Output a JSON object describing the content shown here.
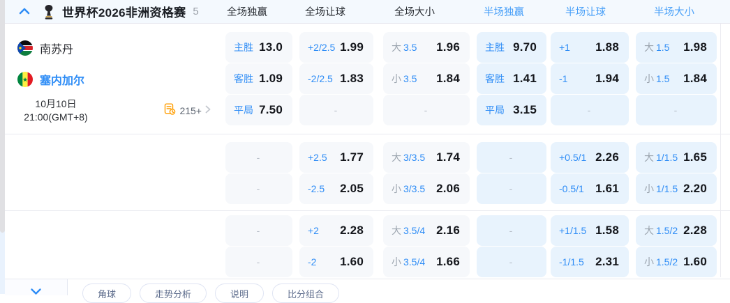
{
  "theme": {
    "accent_blue": "#2F8DF6",
    "header_column_blue": "#49A0F8",
    "orange": "#FF9D00",
    "fulltime_cell_bg": "#F6F8FB",
    "halftime_cell_bg": "#E8F3FD"
  },
  "header": {
    "competition": "世界杯2026非洲资格赛",
    "match_count": "5",
    "columns": [
      {
        "label": "全场独赢",
        "half": "ft"
      },
      {
        "label": "全场让球",
        "half": "ft"
      },
      {
        "label": "全场大小",
        "half": "ft"
      },
      {
        "label": "半场独赢",
        "half": "ht"
      },
      {
        "label": "半场让球",
        "half": "ht"
      },
      {
        "label": "半场大小",
        "half": "ht"
      }
    ]
  },
  "match": {
    "home_team": "南苏丹",
    "away_team": "塞内加尔",
    "date": "10月10日",
    "time": "21:00(GMT+8)",
    "bookmaker_count": "215+"
  },
  "odds_blocks": [
    {
      "rows": [
        {
          "cells": [
            {
              "type": "ml",
              "label": "主胜",
              "value": "13.0"
            },
            {
              "type": "hcp",
              "label": "+2/2.5",
              "value": "1.99"
            },
            {
              "type": "ou",
              "side": "大",
              "line": "3.5",
              "value": "1.96"
            },
            {
              "type": "ml",
              "label": "主胜",
              "value": "9.70"
            },
            {
              "type": "hcp",
              "label": "+1",
              "value": "1.88"
            },
            {
              "type": "ou",
              "side": "大",
              "line": "1.5",
              "value": "1.98"
            }
          ]
        },
        {
          "cells": [
            {
              "type": "ml",
              "label": "客胜",
              "value": "1.09"
            },
            {
              "type": "hcp",
              "label": "-2/2.5",
              "value": "1.83"
            },
            {
              "type": "ou",
              "side": "小",
              "line": "3.5",
              "value": "1.84"
            },
            {
              "type": "ml",
              "label": "客胜",
              "value": "1.41"
            },
            {
              "type": "hcp",
              "label": "-1",
              "value": "1.94"
            },
            {
              "type": "ou",
              "side": "小",
              "line": "1.5",
              "value": "1.84"
            }
          ]
        },
        {
          "cells": [
            {
              "type": "ml",
              "label": "平局",
              "value": "7.50"
            },
            {
              "type": "dash",
              "value": "-"
            },
            {
              "type": "dash",
              "value": "-"
            },
            {
              "type": "ml",
              "label": "平局",
              "value": "3.15"
            },
            {
              "type": "dash",
              "value": "-"
            },
            {
              "type": "dash",
              "value": "-"
            }
          ]
        }
      ]
    },
    {
      "rows": [
        {
          "cells": [
            {
              "type": "dash",
              "value": "-"
            },
            {
              "type": "hcp",
              "label": "+2.5",
              "value": "1.77"
            },
            {
              "type": "ou",
              "side": "大",
              "line": "3/3.5",
              "value": "1.74"
            },
            {
              "type": "dash",
              "value": "-"
            },
            {
              "type": "hcp",
              "label": "+0.5/1",
              "value": "2.26"
            },
            {
              "type": "ou",
              "side": "大",
              "line": "1/1.5",
              "value": "1.65"
            }
          ]
        },
        {
          "cells": [
            {
              "type": "dash",
              "value": "-"
            },
            {
              "type": "hcp",
              "label": "-2.5",
              "value": "2.05"
            },
            {
              "type": "ou",
              "side": "小",
              "line": "3/3.5",
              "value": "2.06"
            },
            {
              "type": "dash",
              "value": "-"
            },
            {
              "type": "hcp",
              "label": "-0.5/1",
              "value": "1.61"
            },
            {
              "type": "ou",
              "side": "小",
              "line": "1/1.5",
              "value": "2.20"
            }
          ]
        }
      ]
    },
    {
      "rows": [
        {
          "cells": [
            {
              "type": "dash",
              "value": "-"
            },
            {
              "type": "hcp",
              "label": "+2",
              "value": "2.28"
            },
            {
              "type": "ou",
              "side": "大",
              "line": "3.5/4",
              "value": "2.16"
            },
            {
              "type": "dash",
              "value": "-"
            },
            {
              "type": "hcp",
              "label": "+1/1.5",
              "value": "1.58"
            },
            {
              "type": "ou",
              "side": "大",
              "line": "1.5/2",
              "value": "2.28"
            }
          ]
        },
        {
          "cells": [
            {
              "type": "dash",
              "value": "-"
            },
            {
              "type": "hcp",
              "label": "-2",
              "value": "1.60"
            },
            {
              "type": "ou",
              "side": "小",
              "line": "3.5/4",
              "value": "1.66"
            },
            {
              "type": "dash",
              "value": "-"
            },
            {
              "type": "hcp",
              "label": "-1/1.5",
              "value": "2.31"
            },
            {
              "type": "ou",
              "side": "小",
              "line": "1.5/2",
              "value": "1.60"
            }
          ]
        }
      ]
    }
  ],
  "footer": {
    "pills": [
      "角球",
      "走势分析",
      "说明",
      "比分组合"
    ]
  }
}
